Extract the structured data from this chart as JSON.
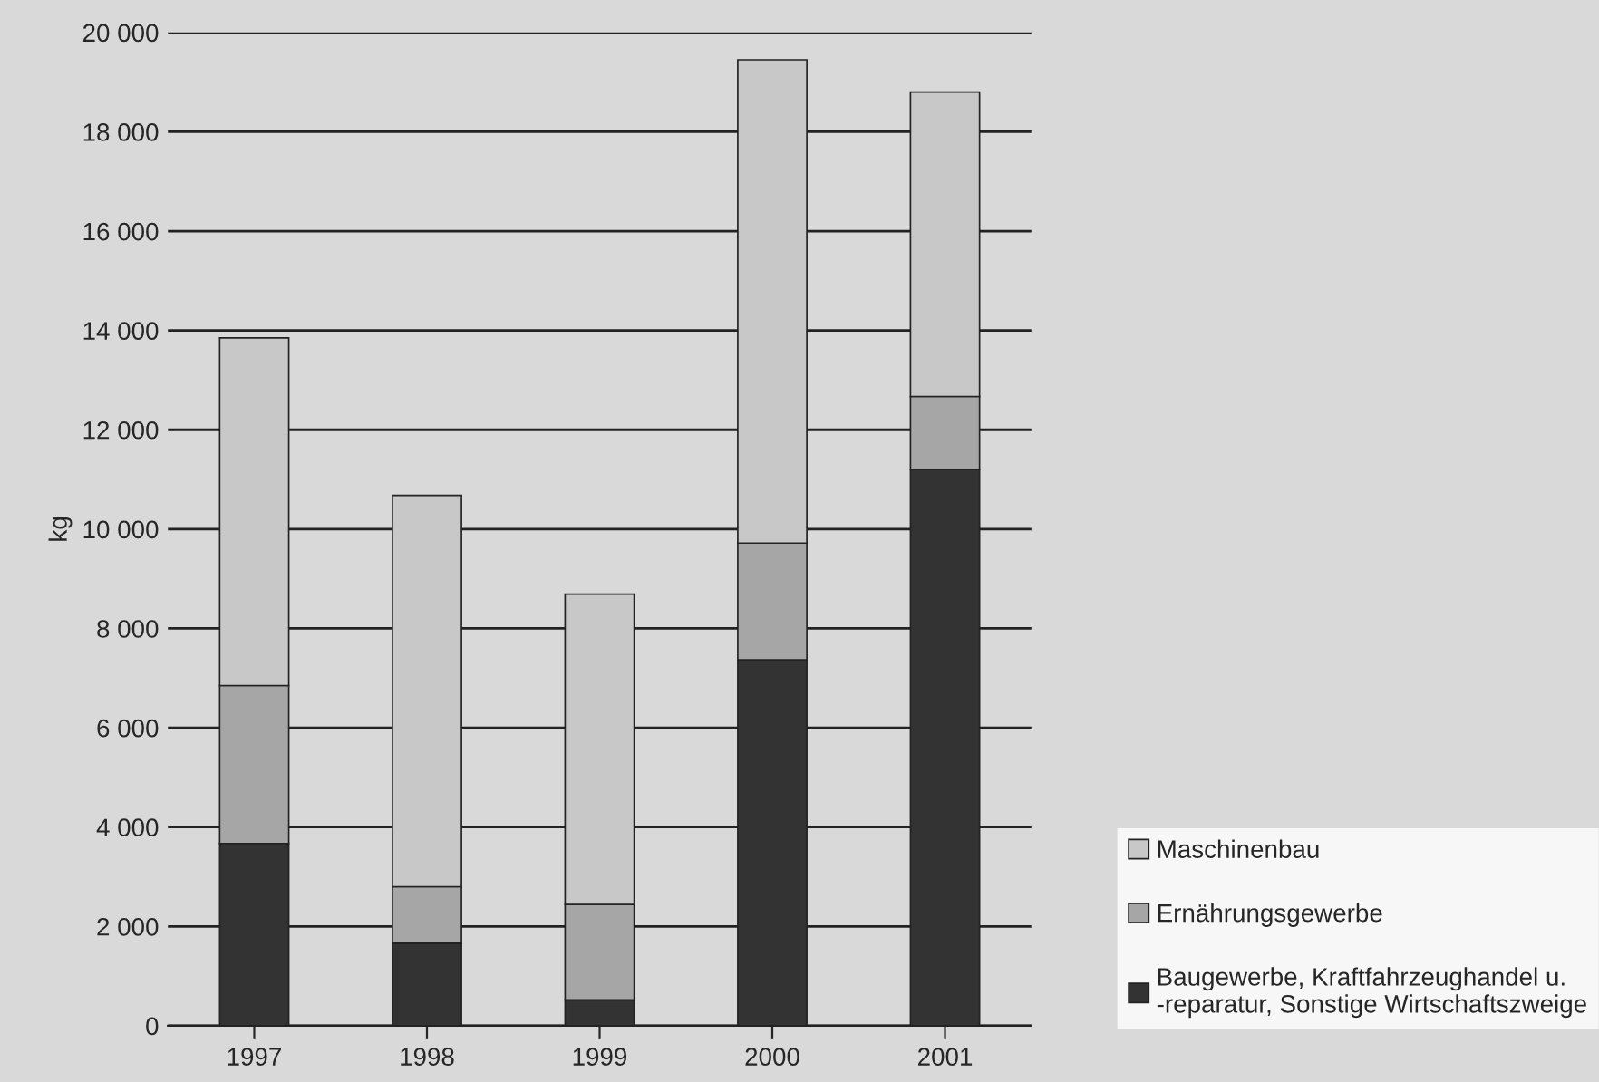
{
  "chart_data": {
    "type": "bar",
    "stacked": true,
    "ylabel": "kg",
    "categories": [
      "1997",
      "1998",
      "1999",
      "2000",
      "2001"
    ],
    "series": [
      {
        "name": "Baugewerbe, Kraftfahrzeughandel u.\n-reparatur, Sonstige Wirtschaftszweige",
        "color": "#333333",
        "values": [
          3670,
          1660,
          520,
          7370,
          11200
        ]
      },
      {
        "name": "Ernährungsgewerbe",
        "color": "#a6a6a6",
        "values": [
          3180,
          1140,
          1920,
          2350,
          1470
        ]
      },
      {
        "name": "Maschinenbau",
        "color": "#c8c8c8",
        "values": [
          7000,
          7880,
          6250,
          9730,
          6130
        ]
      }
    ],
    "ylim": [
      0,
      20000
    ],
    "yticks": [
      {
        "value": 0,
        "label": "0"
      },
      {
        "value": 2000,
        "label": "2 000"
      },
      {
        "value": 4000,
        "label": "4 000"
      },
      {
        "value": 6000,
        "label": "6 000"
      },
      {
        "value": 8000,
        "label": "8 000"
      },
      {
        "value": 10000,
        "label": "10 000"
      },
      {
        "value": 12000,
        "label": "12 000"
      },
      {
        "value": 14000,
        "label": "14 000"
      },
      {
        "value": 16000,
        "label": "16 000"
      },
      {
        "value": 18000,
        "label": "18 000"
      },
      {
        "value": 20000,
        "label": "20 000"
      }
    ],
    "grid": "y",
    "legend": "bottom right"
  }
}
